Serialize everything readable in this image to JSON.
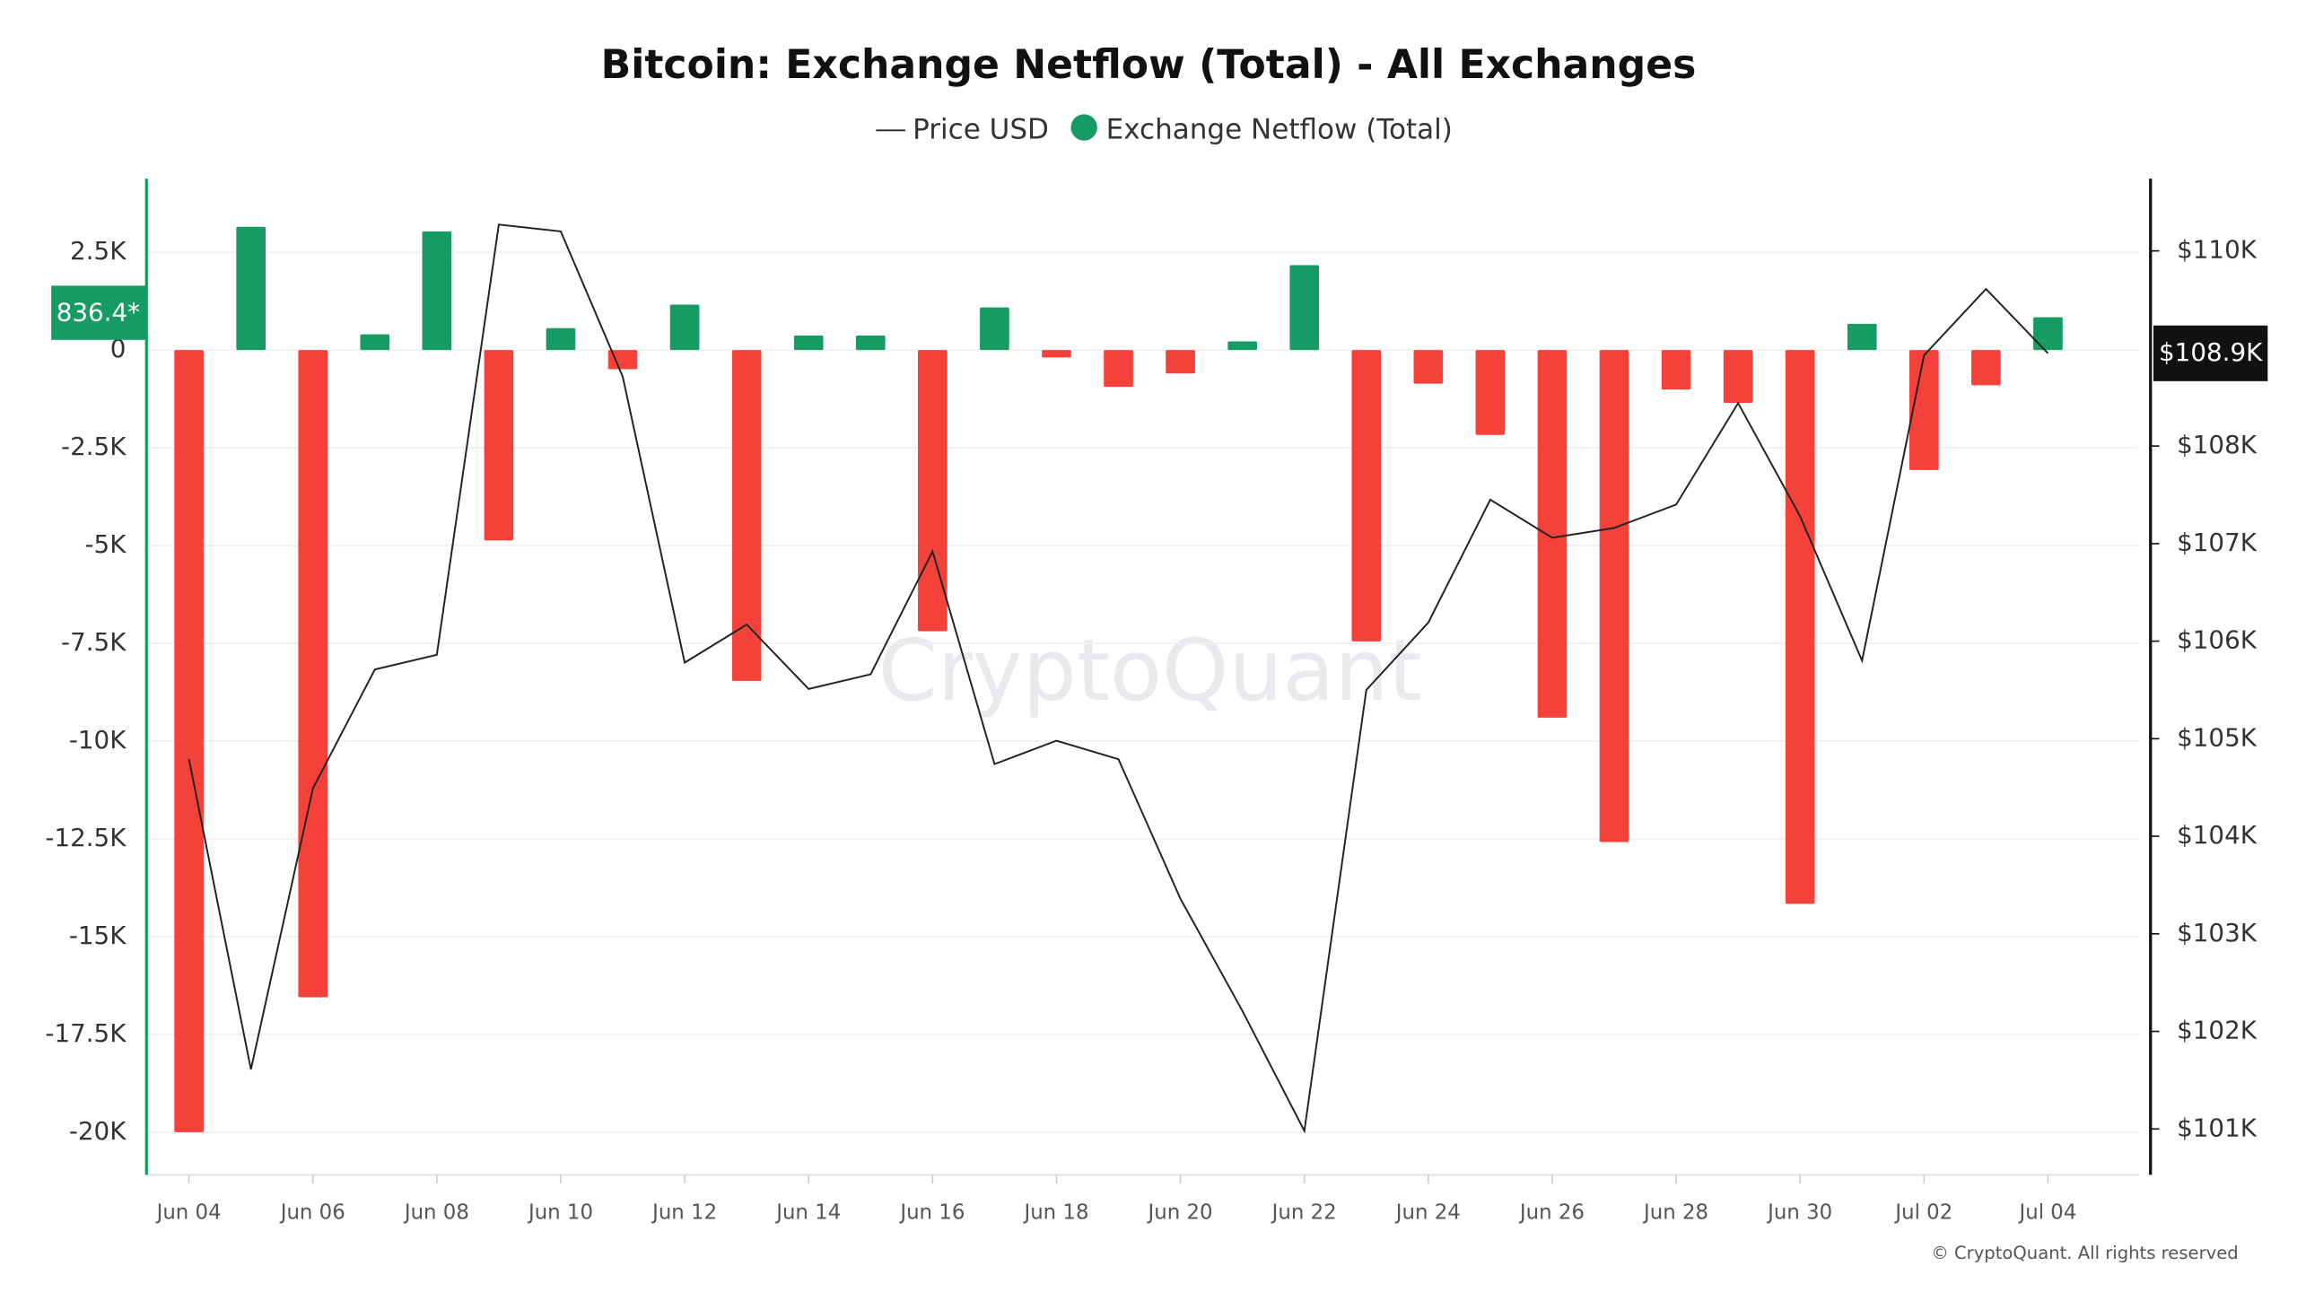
{
  "chart_data": {
    "type": "bar",
    "title": "Bitcoin: Exchange Netflow (Total) - All Exchanges",
    "watermark": "CryptoQuant",
    "footer": "© CryptoQuant. All rights reserved",
    "categories": [
      "Jun 04",
      null,
      "Jun 06",
      null,
      "Jun 08",
      null,
      "Jun 10",
      null,
      "Jun 12",
      null,
      "Jun 14",
      null,
      "Jun 16",
      null,
      "Jun 18",
      null,
      "Jun 20",
      null,
      "Jun 22",
      null,
      "Jun 24",
      null,
      "Jun 26",
      null,
      "Jun 28",
      null,
      "Jun 30",
      null,
      "Jul 02",
      null,
      "Jul 04"
    ],
    "series": [
      {
        "name": "Exchange Netflow (Total)",
        "type": "bar",
        "color": "#169b62",
        "negative_color": "#f4413a",
        "values": [
          -20000,
          3150,
          -16550,
          400,
          3030,
          -4870,
          560,
          -490,
          1160,
          -8460,
          370,
          370,
          -7190,
          1090,
          -190,
          -940,
          -600,
          220,
          2170,
          -7450,
          -860,
          -2170,
          -9400,
          -12580,
          -1010,
          -1350,
          -14160,
          670,
          -3070,
          -900,
          836.4
        ],
        "last_label": "836.4*"
      },
      {
        "name": "Price USD",
        "type": "line",
        "axis": "y2",
        "color": "#222222",
        "values": [
          104790,
          101610,
          104490,
          105710,
          105860,
          110270,
          110200,
          108710,
          105780,
          106170,
          105510,
          105660,
          106920,
          104740,
          104980,
          104790,
          103360,
          102210,
          100980,
          105500,
          106190,
          107450,
          107060,
          107160,
          107400,
          108440,
          107280,
          105800,
          108930,
          109610,
          108950
        ],
        "last_label": "$108.9K"
      }
    ],
    "ylim": [
      -21090,
      4380
    ],
    "yticks": [
      {
        "value": 2500,
        "label": "2.5K"
      },
      0,
      {
        "value": -2500,
        "label": "-2.5K"
      },
      {
        "value": -5000,
        "label": "-5K"
      },
      {
        "value": -7500,
        "label": "-7.5K"
      },
      {
        "value": -10000,
        "label": "-10K"
      },
      {
        "value": -12500,
        "label": "-12.5K"
      },
      {
        "value": -15000,
        "label": "-15K"
      },
      {
        "value": -17500,
        "label": "-17.5K"
      },
      {
        "value": -20000,
        "label": "-20K"
      }
    ],
    "y2lim": [
      100530,
      110740
    ],
    "y2ticks": [
      {
        "value": 101000,
        "label": "$101K"
      },
      {
        "value": 102000,
        "label": "$102K"
      },
      {
        "value": 103000,
        "label": "$103K"
      },
      {
        "value": 104000,
        "label": "$104K"
      },
      {
        "value": 105000,
        "label": "$105K"
      },
      {
        "value": 106000,
        "label": "$106K"
      },
      {
        "value": 107000,
        "label": "$107K"
      },
      {
        "value": 108000,
        "label": "$108K"
      },
      {
        "value": 110000,
        "label": "$110K"
      }
    ],
    "grid": true
  }
}
